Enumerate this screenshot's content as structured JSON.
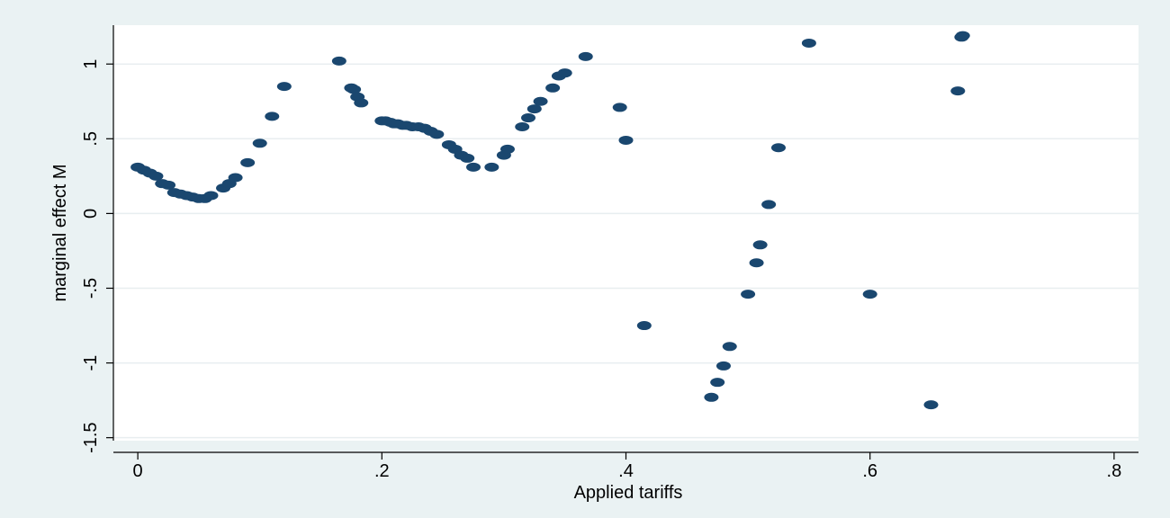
{
  "chart_data": {
    "type": "scatter",
    "title": "",
    "xlabel": "Applied tariffs",
    "ylabel": "marginal effect M",
    "xlim": [
      -0.02,
      0.82
    ],
    "ylim": [
      -1.52,
      1.26
    ],
    "x_ticks": [
      0,
      0.2,
      0.4,
      0.6,
      0.8
    ],
    "x_tick_labels": [
      "0",
      ".2",
      ".4",
      ".6",
      ".8"
    ],
    "y_ticks": [
      -1.5,
      -1,
      -0.5,
      0,
      0.5,
      1
    ],
    "y_tick_labels": [
      "-1.5",
      "-1",
      "-.5",
      "0",
      ".5",
      "1"
    ],
    "grid": "horizontal",
    "legend": "none",
    "colors": {
      "marker": "#1a476f",
      "background": "#eaf2f3",
      "plot_area": "#ffffff",
      "grid": "#e8eef0"
    },
    "series": [
      {
        "x": [
          0,
          0.005,
          0.01,
          0.015,
          0.02,
          0.025,
          0.03,
          0.035,
          0.04,
          0.045,
          0.05,
          0.055,
          0.06,
          0.07,
          0.075,
          0.08,
          0.09,
          0.1,
          0.11,
          0.12,
          0.165,
          0.175,
          0.177,
          0.18,
          0.183,
          0.2,
          0.203,
          0.207,
          0.21,
          0.213,
          0.217,
          0.22,
          0.225,
          0.23,
          0.235,
          0.24,
          0.245,
          0.255,
          0.26,
          0.265,
          0.27,
          0.275,
          0.29,
          0.3,
          0.303,
          0.315,
          0.32,
          0.325,
          0.33,
          0.34,
          0.345,
          0.35,
          0.367,
          0.395,
          0.4,
          0.415,
          0.47,
          0.475,
          0.48,
          0.485,
          0.5,
          0.507,
          0.51,
          0.517,
          0.525,
          0.55,
          0.6,
          0.65,
          0.672,
          0.675,
          0.676
        ],
        "y": [
          0.31,
          0.29,
          0.27,
          0.25,
          0.2,
          0.19,
          0.14,
          0.13,
          0.12,
          0.11,
          0.1,
          0.1,
          0.12,
          0.17,
          0.2,
          0.24,
          0.34,
          0.47,
          0.65,
          0.85,
          1.02,
          0.84,
          0.83,
          0.78,
          0.74,
          0.62,
          0.62,
          0.61,
          0.6,
          0.6,
          0.59,
          0.59,
          0.58,
          0.58,
          0.57,
          0.55,
          0.53,
          0.46,
          0.43,
          0.39,
          0.37,
          0.31,
          0.31,
          0.39,
          0.43,
          0.58,
          0.64,
          0.7,
          0.75,
          0.84,
          0.92,
          0.94,
          1.05,
          0.71,
          0.49,
          -0.75,
          -1.23,
          -1.13,
          -1.02,
          -0.89,
          -0.54,
          -0.33,
          -0.21,
          0.06,
          0.44,
          1.14,
          -0.54,
          -1.28,
          0.82,
          1.18,
          1.19
        ]
      }
    ]
  }
}
